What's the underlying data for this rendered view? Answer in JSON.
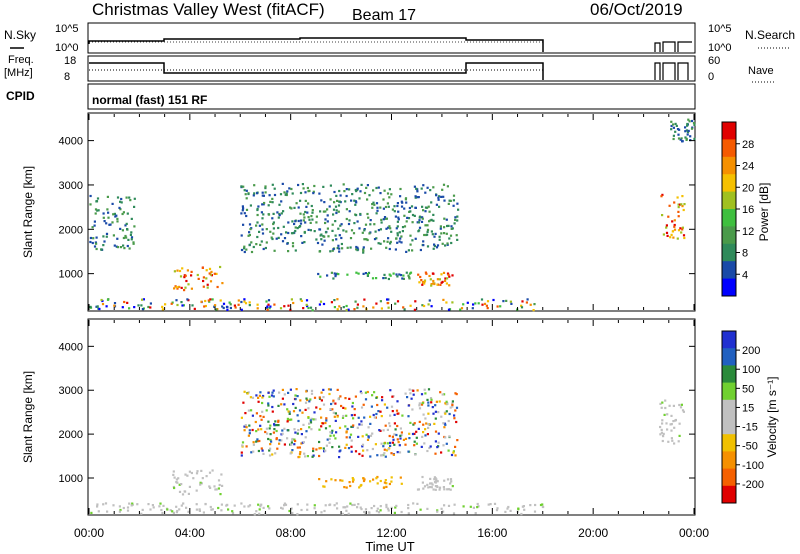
{
  "header": {
    "title": "Christmas Valley West (fitACF)",
    "beam": "Beam 17",
    "date": "06/Oct/2019"
  },
  "panels": {
    "sky_label": "N.Sky",
    "sky_scale_hi": "10^5",
    "sky_scale_lo": "10^0",
    "search_label": "N.Search",
    "search_scale_hi": "10^5",
    "search_scale_lo": "10^0",
    "freq_label_1": "Freq.",
    "freq_label_2": "[MHz]",
    "freq_hi": "18",
    "freq_lo": "8",
    "nave_label": "Nave",
    "nave_hi": "60",
    "nave_lo": "0",
    "cpid_label": "CPID",
    "cpid_text": "normal (fast) 151 RF"
  },
  "colors": {
    "power_scale": [
      "#0000ff",
      "#1a4aa8",
      "#2f8a5a",
      "#4a9a4a",
      "#3fbf3f",
      "#a0c020",
      "#f5c000",
      "#f59000",
      "#f55a00",
      "#e00000"
    ],
    "velocity_scale": [
      "#2030d0",
      "#2060c0",
      "#2a8a3a",
      "#70d030",
      "#c0c0c0",
      "#c0c0c0",
      "#f0c000",
      "#f59000",
      "#f56000",
      "#e00000"
    ]
  },
  "chart_data": [
    {
      "type": "heatmap",
      "title": "Power",
      "ylabel": "Slant Range [km]",
      "xlabel": "",
      "yticks": [
        "1000",
        "2000",
        "3000",
        "4000"
      ],
      "ylim": [
        180,
        4600
      ],
      "colorbar_label": "Power [dB]",
      "colorbar_ticks": [
        "4",
        "8",
        "12",
        "16",
        "20",
        "24",
        "28"
      ],
      "colorbar_range": [
        0,
        32
      ],
      "regions": [
        {
          "t0": 0.0,
          "t1": 18.0,
          "r0": 200,
          "r1": 450,
          "level": "mixed"
        },
        {
          "t0": 3.3,
          "t1": 5.3,
          "r0": 650,
          "r1": 1200,
          "level": "high"
        },
        {
          "t0": 13.0,
          "t1": 14.4,
          "r0": 750,
          "r1": 1050,
          "level": "high"
        },
        {
          "t0": 9.0,
          "t1": 12.8,
          "r0": 900,
          "r1": 1050,
          "level": "mid"
        },
        {
          "t0": 0.0,
          "t1": 1.8,
          "r0": 1550,
          "r1": 2800,
          "level": "low"
        },
        {
          "t0": 6.0,
          "t1": 14.6,
          "r0": 1500,
          "r1": 3050,
          "level": "low"
        },
        {
          "t0": 22.6,
          "t1": 23.6,
          "r0": 1800,
          "r1": 2800,
          "level": "high"
        },
        {
          "t0": 23.0,
          "t1": 24.0,
          "r0": 4000,
          "r1": 4500,
          "level": "low"
        }
      ]
    },
    {
      "type": "heatmap",
      "title": "Velocity",
      "ylabel": "Slant Range [km]",
      "xlabel": "Time UT",
      "xticks": [
        "00:00",
        "04:00",
        "08:00",
        "12:00",
        "16:00",
        "20:00",
        "00:00"
      ],
      "yticks": [
        "1000",
        "2000",
        "3000",
        "4000"
      ],
      "ylim": [
        180,
        4600
      ],
      "colorbar_label": "Velocity [m s^-1]",
      "colorbar_ticks": [
        "200",
        "100",
        "50",
        "15",
        "-15",
        "-50",
        "-100",
        "-200"
      ],
      "colorbar_range": [
        -250,
        250
      ],
      "regions": [
        {
          "t0": 0.0,
          "t1": 18.0,
          "r0": 200,
          "r1": 450,
          "level": "near-zero"
        },
        {
          "t0": 3.3,
          "t1": 5.3,
          "r0": 650,
          "r1": 1200,
          "level": "near-zero"
        },
        {
          "t0": 9.0,
          "t1": 12.4,
          "r0": 800,
          "r1": 1050,
          "level": "negative"
        },
        {
          "t0": 13.0,
          "t1": 14.4,
          "r0": 750,
          "r1": 1050,
          "level": "near-zero"
        },
        {
          "t0": 6.0,
          "t1": 14.6,
          "r0": 1500,
          "r1": 3050,
          "level": "mixed"
        },
        {
          "t0": 22.6,
          "t1": 23.6,
          "r0": 1800,
          "r1": 2800,
          "level": "near-zero"
        }
      ]
    }
  ]
}
